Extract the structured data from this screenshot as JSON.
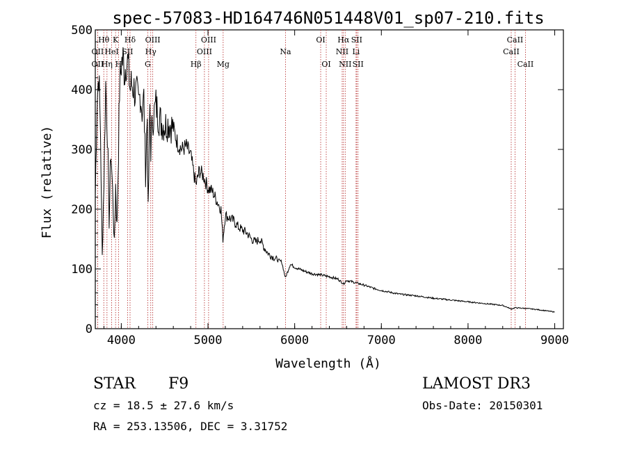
{
  "chart_data": {
    "type": "line",
    "title": "spec-57083-HD164746N051448V01_sp07-210.fits",
    "xlabel": "Wavelength (Å)",
    "ylabel": "Flux (relative)",
    "xlim": [
      3700,
      9100
    ],
    "ylim": [
      0,
      500
    ],
    "xticks": [
      4000,
      5000,
      6000,
      7000,
      8000,
      9000
    ],
    "yticks": [
      0,
      100,
      200,
      300,
      400,
      500
    ],
    "line_color": "#000000",
    "marker_color": "#b22222",
    "spectrum": {
      "name": "flux",
      "x": [
        3700,
        3720,
        3740,
        3760,
        3780,
        3800,
        3820,
        3840,
        3860,
        3880,
        3900,
        3920,
        3935,
        3950,
        3968,
        3980,
        4000,
        4020,
        4040,
        4060,
        4080,
        4101,
        4120,
        4140,
        4160,
        4180,
        4200,
        4220,
        4240,
        4260,
        4280,
        4300,
        4310,
        4330,
        4340,
        4360,
        4380,
        4400,
        4430,
        4460,
        4500,
        4550,
        4600,
        4650,
        4700,
        4750,
        4800,
        4861,
        4900,
        4950,
        5000,
        5050,
        5100,
        5150,
        5172,
        5200,
        5250,
        5300,
        5350,
        5400,
        5450,
        5500,
        5550,
        5600,
        5650,
        5700,
        5750,
        5800,
        5850,
        5893,
        5950,
        6000,
        6100,
        6200,
        6300,
        6400,
        6500,
        6563,
        6600,
        6700,
        6800,
        6900,
        7000,
        7200,
        7400,
        7600,
        7800,
        8000,
        8200,
        8400,
        8498,
        8542,
        8662,
        8800,
        9000
      ],
      "y": [
        220,
        380,
        430,
        330,
        120,
        250,
        410,
        330,
        180,
        300,
        230,
        140,
        240,
        170,
        300,
        400,
        445,
        450,
        430,
        455,
        440,
        400,
        410,
        405,
        395,
        390,
        375,
        395,
        365,
        385,
        260,
        355,
        195,
        370,
        300,
        350,
        360,
        375,
        355,
        345,
        340,
        345,
        335,
        310,
        300,
        305,
        290,
        240,
        265,
        255,
        235,
        230,
        215,
        200,
        150,
        190,
        185,
        180,
        170,
        165,
        160,
        150,
        145,
        150,
        135,
        125,
        120,
        115,
        112,
        85,
        108,
        103,
        97,
        92,
        90,
        87,
        83,
        75,
        81,
        77,
        73,
        68,
        64,
        58,
        55,
        51,
        48,
        45,
        42,
        39,
        33,
        35,
        34,
        32,
        28
      ]
    },
    "lines": [
      {
        "label": "Hθ",
        "wavelength": 3798,
        "row": 1
      },
      {
        "label": "OII",
        "wavelength": 3727,
        "row": 2
      },
      {
        "label": "OII",
        "wavelength": 3727,
        "row": 3
      },
      {
        "label": "Hη",
        "wavelength": 3835,
        "row": 3
      },
      {
        "label": "HeI",
        "wavelength": 3889,
        "row": 2
      },
      {
        "label": "K",
        "wavelength": 3934,
        "row": 1
      },
      {
        "label": "H",
        "wavelength": 3968,
        "row": 3
      },
      {
        "label": "Hδ",
        "wavelength": 4101,
        "row": 1
      },
      {
        "label": "SII",
        "wavelength": 4072,
        "row": 2
      },
      {
        "label": "OIII",
        "wavelength": 4363,
        "row": 1
      },
      {
        "label": "Hγ",
        "wavelength": 4340,
        "row": 2
      },
      {
        "label": "G",
        "wavelength": 4305,
        "row": 3
      },
      {
        "label": "Hβ",
        "wavelength": 4861,
        "row": 3
      },
      {
        "label": "OIII",
        "wavelength": 5007,
        "row": 1
      },
      {
        "label": "OIII",
        "wavelength": 4959,
        "row": 2
      },
      {
        "label": "Mg",
        "wavelength": 5175,
        "row": 3
      },
      {
        "label": "Na",
        "wavelength": 5894,
        "row": 2
      },
      {
        "label": "OI",
        "wavelength": 6300,
        "row": 1
      },
      {
        "label": "OI",
        "wavelength": 6364,
        "row": 3
      },
      {
        "label": "Hα",
        "wavelength": 6563,
        "row": 1
      },
      {
        "label": "NII",
        "wavelength": 6548,
        "row": 2
      },
      {
        "label": "NII",
        "wavelength": 6583,
        "row": 3
      },
      {
        "label": "SII",
        "wavelength": 6716,
        "row": 1
      },
      {
        "label": "Li",
        "wavelength": 6708,
        "row": 2
      },
      {
        "label": "SII",
        "wavelength": 6731,
        "row": 3
      },
      {
        "label": "CaII",
        "wavelength": 8542,
        "row": 1
      },
      {
        "label": "CaII",
        "wavelength": 8498,
        "row": 2
      },
      {
        "label": "CaII",
        "wavelength": 8662,
        "row": 3
      }
    ]
  },
  "info": {
    "object_type": "STAR",
    "subclass": "F9",
    "survey": "LAMOST DR3",
    "redshift_text": "cz = 18.5 ± 27.6 km/s",
    "obs_date": "Obs-Date: 20150301",
    "coords": "RA = 253.13506, DEC =   3.31752"
  }
}
